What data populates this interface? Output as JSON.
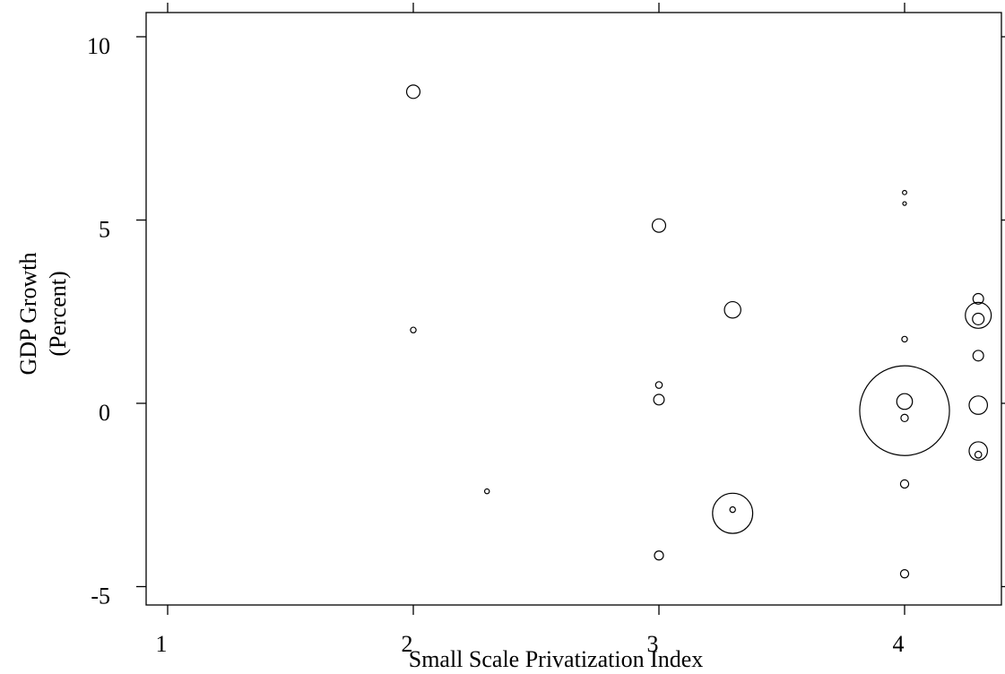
{
  "chart_data": {
    "type": "scatter",
    "title": "",
    "xlabel": "Small Scale Privatization Index",
    "ylabel_lines": [
      "GDP Growth",
      "(Percent)"
    ],
    "xlim": [
      1,
      4.4
    ],
    "ylim": [
      -5.5,
      10.3
    ],
    "x_ticks": [
      1,
      2,
      3,
      4
    ],
    "x_tick_labels": [
      "1",
      "2",
      "3",
      "4"
    ],
    "y_ticks": [
      -5,
      0,
      5,
      10
    ],
    "y_tick_labels": [
      "-5",
      "0",
      "5",
      "10"
    ],
    "grid": false,
    "bubble_size_note": "marker radius proportional to sqrt(weight)",
    "points": [
      {
        "x": 2.0,
        "y": 8.5,
        "weight": 0.4
      },
      {
        "x": 2.0,
        "y": 2.0,
        "weight": 0.07
      },
      {
        "x": 2.3,
        "y": -2.4,
        "weight": 0.05
      },
      {
        "x": 3.0,
        "y": 4.85,
        "weight": 0.4
      },
      {
        "x": 3.0,
        "y": 0.5,
        "weight": 0.1
      },
      {
        "x": 3.0,
        "y": 0.1,
        "weight": 0.25
      },
      {
        "x": 3.0,
        "y": -4.15,
        "weight": 0.18
      },
      {
        "x": 3.3,
        "y": 2.55,
        "weight": 0.6
      },
      {
        "x": 3.3,
        "y": -3.0,
        "weight": 3.6
      },
      {
        "x": 3.3,
        "y": -2.9,
        "weight": 0.07
      },
      {
        "x": 4.0,
        "y": 5.75,
        "weight": 0.04
      },
      {
        "x": 4.0,
        "y": 5.45,
        "weight": 0.03
      },
      {
        "x": 4.0,
        "y": 1.75,
        "weight": 0.07
      },
      {
        "x": 4.0,
        "y": 0.05,
        "weight": 0.55
      },
      {
        "x": 4.0,
        "y": -0.2,
        "weight": 18.0
      },
      {
        "x": 4.0,
        "y": -0.4,
        "weight": 0.12
      },
      {
        "x": 4.0,
        "y": -2.2,
        "weight": 0.15
      },
      {
        "x": 4.0,
        "y": -4.65,
        "weight": 0.15
      },
      {
        "x": 4.3,
        "y": 2.85,
        "weight": 0.25
      },
      {
        "x": 4.3,
        "y": 2.4,
        "weight": 1.5
      },
      {
        "x": 4.3,
        "y": 2.3,
        "weight": 0.3
      },
      {
        "x": 4.3,
        "y": 1.3,
        "weight": 0.25
      },
      {
        "x": 4.3,
        "y": -0.05,
        "weight": 0.75
      },
      {
        "x": 4.3,
        "y": -1.3,
        "weight": 0.75
      },
      {
        "x": 4.3,
        "y": -1.4,
        "weight": 0.1
      }
    ]
  }
}
